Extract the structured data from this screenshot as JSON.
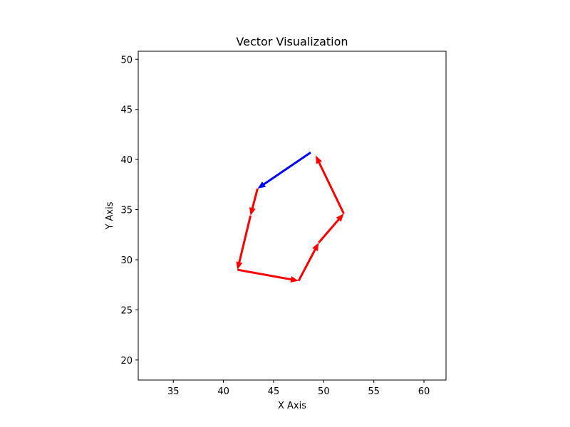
{
  "chart_data": {
    "type": "quiver",
    "title": "Vector Visualization",
    "xlabel": "X Axis",
    "ylabel": "Y Axis",
    "xlim": [
      31.5,
      62.2
    ],
    "ylim": [
      18.0,
      50.8
    ],
    "xticks": [
      35,
      40,
      45,
      50,
      55,
      60
    ],
    "yticks": [
      20,
      25,
      30,
      35,
      40,
      45,
      50
    ],
    "grid": false,
    "series": [
      {
        "color": "#ff0000",
        "vectors": [
          {
            "x": 43.4,
            "y": 37.1,
            "x2": 42.7,
            "y2": 34.4
          },
          {
            "x": 42.7,
            "y": 34.4,
            "x2": 41.4,
            "y2": 29.0
          },
          {
            "x": 41.4,
            "y": 29.0,
            "x2": 47.5,
            "y2": 27.9
          },
          {
            "x": 47.5,
            "y": 27.9,
            "x2": 49.5,
            "y2": 31.7
          },
          {
            "x": 49.5,
            "y": 31.7,
            "x2": 52.0,
            "y2": 34.6
          },
          {
            "x": 52.0,
            "y": 34.6,
            "x2": 49.2,
            "y2": 40.4
          }
        ]
      },
      {
        "color": "#0000ff",
        "vectors": [
          {
            "x": 48.7,
            "y": 40.7,
            "x2": 43.4,
            "y2": 37.1
          }
        ]
      }
    ]
  }
}
